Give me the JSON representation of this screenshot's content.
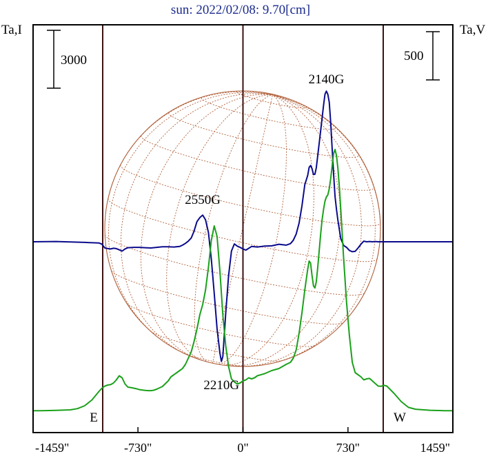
{
  "chart_data": {
    "type": "line",
    "title": "sun: 2022/02/08: 9.70[cm]",
    "left_axis_label": "Ta,I",
    "right_axis_label": "Ta,V",
    "left_scale_bar_label": "3000",
    "right_scale_bar_label": "500",
    "x_tick_labels": [
      "-1459\"",
      "-730\"",
      "0\"",
      "730\"",
      "1459\""
    ],
    "x_tick_values": [
      -1459,
      -730,
      0,
      730,
      1459
    ],
    "xlim": [
      -1459,
      1459
    ],
    "limb_markers": [
      {
        "label": "E",
        "x": -975
      },
      {
        "label": "W",
        "x": 975
      }
    ],
    "center_line_x": 0,
    "annotations": [
      {
        "text": "2550G",
        "x": -280
      },
      {
        "text": "2210G",
        "x": -150
      },
      {
        "text": "2140G",
        "x": 580
      }
    ],
    "colors": {
      "title": "#1a2a8c",
      "stokes_i": "#1aa01a",
      "stokes_v": "#0a0a8c",
      "disk_grid": "#b0603a",
      "frame": "#000000",
      "limb_lines": "#3a1010"
    },
    "series": [
      {
        "key": "intensity",
        "x": [
          -1459,
          -1400,
          -1300,
          -1200,
          -1150,
          -1100,
          -1050,
          -1000,
          -980,
          -960,
          -940,
          -920,
          -900,
          -880,
          -860,
          -840,
          -820,
          -800,
          -780,
          -760,
          -740,
          -720,
          -700,
          -680,
          -660,
          -640,
          -620,
          -600,
          -560,
          -520,
          -500,
          -480,
          -460,
          -440,
          -420,
          -400,
          -380,
          -360,
          -340,
          -320,
          -300,
          -280,
          -260,
          -240,
          -220,
          -200,
          -180,
          -160,
          -140,
          -120,
          -100,
          -80,
          -60,
          -40,
          -20,
          0,
          20,
          40,
          60,
          80,
          100,
          150,
          200,
          250,
          300,
          330,
          350,
          370,
          390,
          410,
          430,
          450,
          460,
          470,
          480,
          490,
          500,
          510,
          520,
          530,
          540,
          550,
          560,
          570,
          580,
          590,
          600,
          610,
          620,
          630,
          640,
          650,
          660,
          670,
          680,
          700,
          720,
          740,
          760,
          780,
          800,
          820,
          840,
          860,
          880,
          900,
          920,
          940,
          960,
          980,
          1000,
          1050,
          1100,
          1150,
          1200,
          1300,
          1400,
          1459
        ],
        "values": [
          60,
          60,
          72,
          100,
          160,
          300,
          580,
          1000,
          1150,
          1250,
          1300,
          1320,
          1400,
          1550,
          1750,
          1650,
          1350,
          1200,
          1180,
          1150,
          1120,
          1080,
          1060,
          1040,
          1030,
          1030,
          1050,
          1100,
          1230,
          1500,
          1700,
          1800,
          1900,
          2000,
          2100,
          2300,
          2600,
          2900,
          3400,
          4000,
          4700,
          5200,
          5900,
          7000,
          8300,
          9000,
          8500,
          6800,
          4700,
          3200,
          2200,
          1600,
          1450,
          1350,
          1400,
          1500,
          1550,
          1650,
          1600,
          1650,
          1750,
          1850,
          2000,
          2100,
          2300,
          2400,
          2600,
          3000,
          3800,
          4800,
          5900,
          6900,
          7300,
          7200,
          6600,
          6100,
          6000,
          6300,
          7000,
          7800,
          8600,
          9300,
          9800,
          10200,
          10400,
          10500,
          10800,
          11300,
          11900,
          12500,
          12700,
          12400,
          11800,
          10900,
          9800,
          7400,
          5300,
          3700,
          2400,
          1900,
          1800,
          1700,
          1550,
          1600,
          1620,
          1500,
          1370,
          1250,
          1240,
          1290,
          1250,
          900,
          500,
          220,
          130,
          80,
          60,
          60
        ]
      },
      {
        "key": "circular_polarization",
        "x": [
          -1459,
          -1300,
          -1100,
          -1000,
          -980,
          -960,
          -940,
          -920,
          -900,
          -880,
          -860,
          -840,
          -820,
          -800,
          -760,
          -720,
          -680,
          -640,
          -600,
          -560,
          -520,
          -480,
          -440,
          -420,
          -400,
          -380,
          -360,
          -340,
          -320,
          -300,
          -280,
          -260,
          -240,
          -220,
          -200,
          -180,
          -160,
          -150,
          -140,
          -120,
          -100,
          -80,
          -60,
          -40,
          -20,
          0,
          20,
          60,
          100,
          150,
          200,
          250,
          300,
          330,
          350,
          370,
          390,
          410,
          430,
          450,
          460,
          470,
          480,
          490,
          500,
          510,
          520,
          530,
          540,
          550,
          560,
          570,
          580,
          590,
          600,
          610,
          620,
          630,
          640,
          650,
          660,
          670,
          680,
          700,
          720,
          740,
          760,
          780,
          800,
          820,
          840,
          860,
          880,
          900,
          920,
          940,
          960,
          980,
          1000,
          1100,
          1200,
          1300,
          1459
        ],
        "values": [
          0,
          5,
          -10,
          -20,
          -40,
          -100,
          -110,
          -115,
          -105,
          -110,
          -130,
          -150,
          -115,
          -95,
          -90,
          -90,
          -95,
          -100,
          -90,
          -80,
          -80,
          -85,
          -75,
          -55,
          -25,
          10,
          60,
          170,
          325,
          390,
          430,
          355,
          150,
          -280,
          -830,
          -1400,
          -1800,
          -1930,
          -1850,
          -1150,
          -550,
          -150,
          -35,
          -70,
          -90,
          -115,
          -135,
          -75,
          -85,
          -70,
          -65,
          -40,
          -55,
          -30,
          25,
          125,
          300,
          580,
          920,
          1070,
          1200,
          1230,
          1180,
          1085,
          1090,
          1195,
          1390,
          1590,
          1790,
          1995,
          2200,
          2380,
          2430,
          2380,
          2250,
          1920,
          1500,
          1090,
          730,
          520,
          350,
          200,
          50,
          -60,
          -90,
          -140,
          -160,
          -155,
          -100,
          -40,
          10,
          0,
          5,
          0,
          5,
          0,
          0,
          0,
          0,
          0,
          0,
          0,
          0
        ]
      }
    ]
  }
}
